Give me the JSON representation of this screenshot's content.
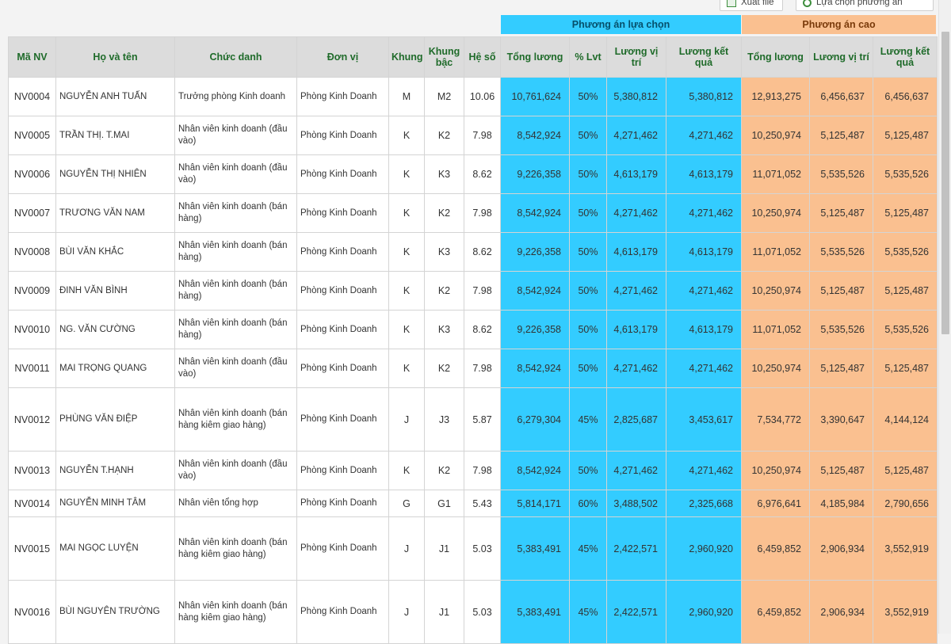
{
  "toolbar": {
    "export_label": "Xuất file",
    "choose_label": "Lựa chọn phương án"
  },
  "groups": {
    "selected": "Phương án lựa chọn",
    "high": "Phương án cao"
  },
  "columns": [
    "Mã NV",
    "Họ và tên",
    "Chức danh",
    "Đơn vị",
    "Khung",
    "Khung bậc",
    "Hệ số",
    "Tổng lương",
    "% Lvt",
    "Lương vị trí",
    "Lương kết quả",
    "Tổng lương",
    "Lương vị trí",
    "Lương kết quả"
  ],
  "colors": {
    "selected_bg": "#33ccff",
    "high_bg": "#fac090",
    "header_text": "#1f6b2a"
  },
  "rows": [
    [
      "NV0004",
      "NGUYỄN ANH TUẤN",
      "Trưởng phòng Kinh doanh",
      "Phòng Kinh Doanh",
      "M",
      "M2",
      "10.06",
      "10,761,624",
      "50%",
      "5,380,812",
      "5,380,812",
      "12,913,275",
      "6,456,637",
      "6,456,637"
    ],
    [
      "NV0005",
      "TRẦN THỊ. T.MAI",
      "Nhân viên kinh doanh (đầu vào)",
      "Phòng Kinh Doanh",
      "K",
      "K2",
      "7.98",
      "8,542,924",
      "50%",
      "4,271,462",
      "4,271,462",
      "10,250,974",
      "5,125,487",
      "5,125,487"
    ],
    [
      "NV0006",
      "NGUYỄN THỊ NHIÊN",
      "Nhân viên kinh doanh (đầu vào)",
      "Phòng Kinh Doanh",
      "K",
      "K3",
      "8.62",
      "9,226,358",
      "50%",
      "4,613,179",
      "4,613,179",
      "11,071,052",
      "5,535,526",
      "5,535,526"
    ],
    [
      "NV0007",
      "TRƯƠNG VĂN  NAM",
      "Nhân viên kinh doanh (bán hàng)",
      "Phòng Kinh Doanh",
      "K",
      "K2",
      "7.98",
      "8,542,924",
      "50%",
      "4,271,462",
      "4,271,462",
      "10,250,974",
      "5,125,487",
      "5,125,487"
    ],
    [
      "NV0008",
      "BÙI VĂN KHẮC",
      "Nhân viên kinh doanh (bán hàng)",
      "Phòng Kinh Doanh",
      "K",
      "K3",
      "8.62",
      "9,226,358",
      "50%",
      "4,613,179",
      "4,613,179",
      "11,071,052",
      "5,535,526",
      "5,535,526"
    ],
    [
      "NV0009",
      "ĐINH VĂN BÌNH",
      "Nhân viên kinh doanh (bán hàng)",
      "Phòng Kinh Doanh",
      "K",
      "K2",
      "7.98",
      "8,542,924",
      "50%",
      "4,271,462",
      "4,271,462",
      "10,250,974",
      "5,125,487",
      "5,125,487"
    ],
    [
      "NV0010",
      "NG. VĂN CƯỜNG",
      "Nhân viên kinh doanh (bán hàng)",
      "Phòng Kinh Doanh",
      "K",
      "K3",
      "8.62",
      "9,226,358",
      "50%",
      "4,613,179",
      "4,613,179",
      "11,071,052",
      "5,535,526",
      "5,535,526"
    ],
    [
      "NV0011",
      "MAI TRỌNG QUANG",
      "Nhân viên kinh doanh (đầu vào)",
      "Phòng Kinh Doanh",
      "K",
      "K2",
      "7.98",
      "8,542,924",
      "50%",
      "4,271,462",
      "4,271,462",
      "10,250,974",
      "5,125,487",
      "5,125,487"
    ],
    [
      "NV0012",
      "PHÙNG VĂN ĐIỆP",
      "Nhân viên kinh doanh (bán hàng kiêm giao hàng)",
      "Phòng Kinh Doanh",
      "J",
      "J3",
      "5.87",
      "6,279,304",
      "45%",
      "2,825,687",
      "3,453,617",
      "7,534,772",
      "3,390,647",
      "4,144,124"
    ],
    [
      "NV0013",
      "NGUYỄN T.HẠNH",
      "Nhân viên kinh doanh (đầu vào)",
      "Phòng Kinh Doanh",
      "K",
      "K2",
      "7.98",
      "8,542,924",
      "50%",
      "4,271,462",
      "4,271,462",
      "10,250,974",
      "5,125,487",
      "5,125,487"
    ],
    [
      "NV0014",
      "NGUYỄN MINH TÂM",
      "Nhân viên tổng hợp",
      "Phòng Kinh Doanh",
      "G",
      "G1",
      "5.43",
      "5,814,171",
      "60%",
      "3,488,502",
      "2,325,668",
      "6,976,641",
      "4,185,984",
      "2,790,656"
    ],
    [
      "NV0015",
      "MAI NGỌC LUYỆN",
      "Nhân viên kinh doanh (bán hàng kiêm giao hàng)",
      "Phòng Kinh Doanh",
      "J",
      "J1",
      "5.03",
      "5,383,491",
      "45%",
      "2,422,571",
      "2,960,920",
      "6,459,852",
      "2,906,934",
      "3,552,919"
    ],
    [
      "NV0016",
      "BÙI NGUYÊN TRƯỜNG",
      "Nhân viên kinh doanh (bán hàng kiêm giao hàng)",
      "Phòng Kinh Doanh",
      "J",
      "J1",
      "5.03",
      "5,383,491",
      "45%",
      "2,422,571",
      "2,960,920",
      "6,459,852",
      "2,906,934",
      "3,552,919"
    ]
  ]
}
